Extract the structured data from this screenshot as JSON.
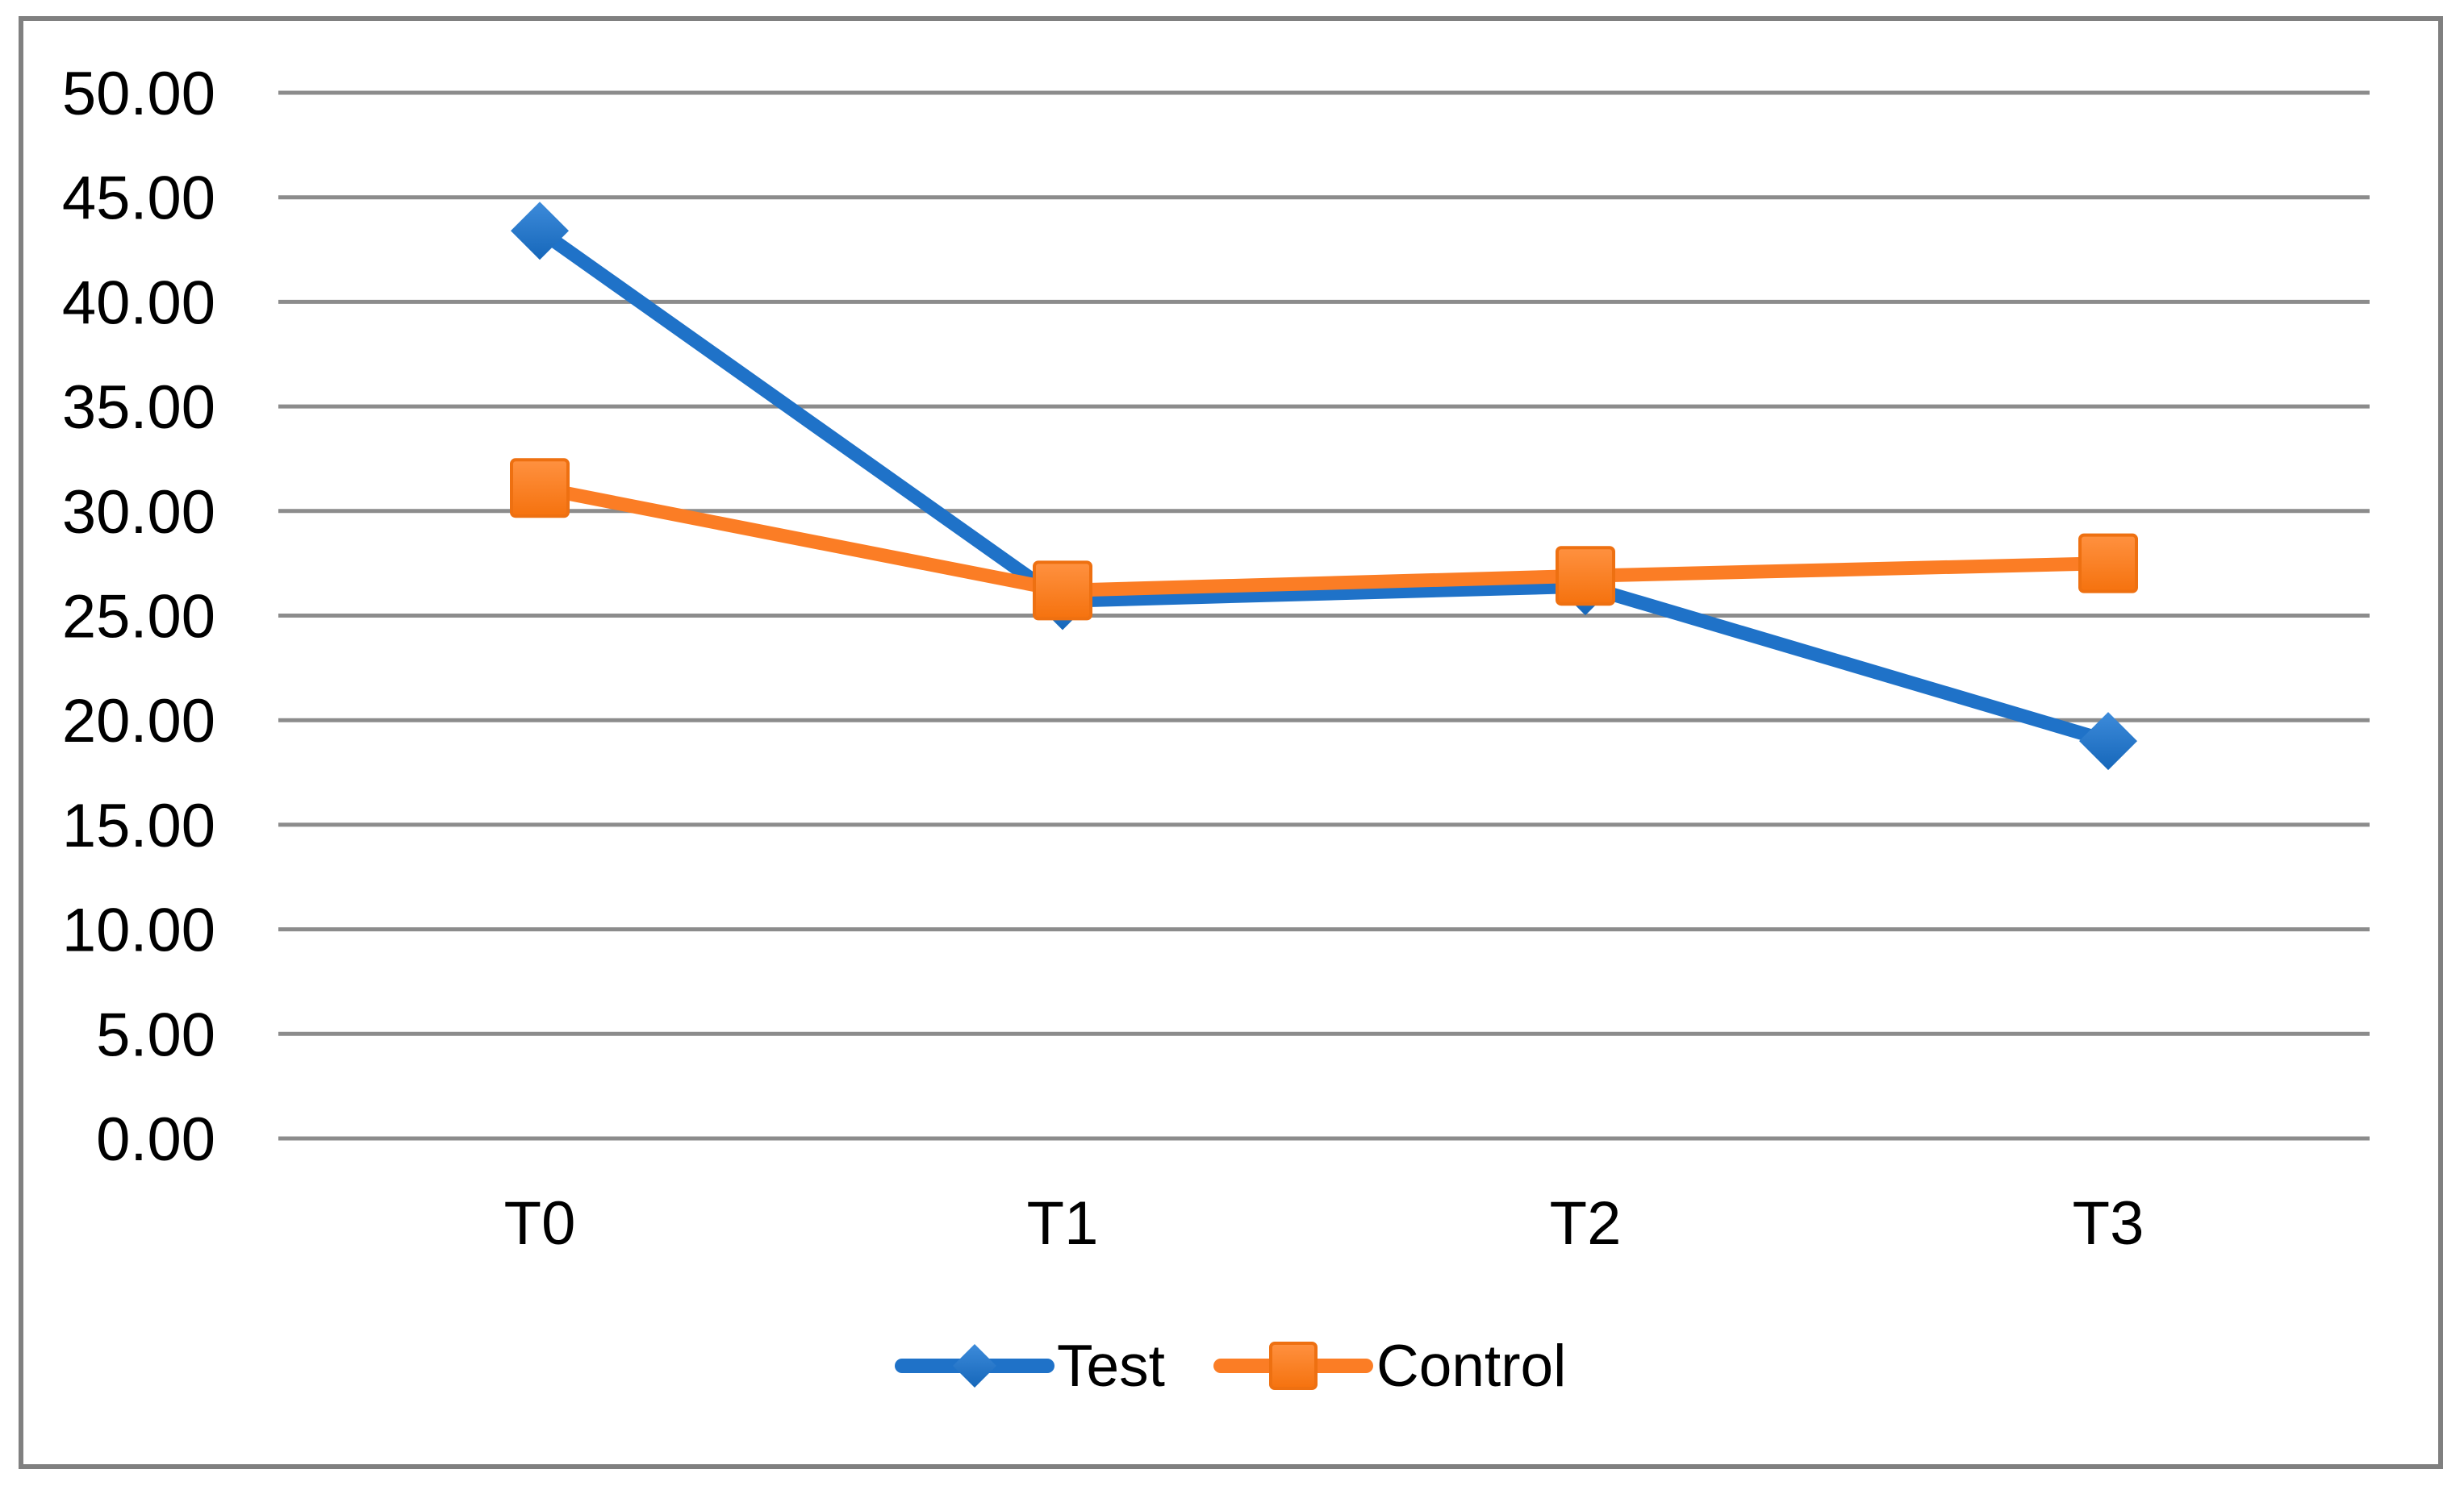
{
  "figure": {
    "background": "#FFFFFF",
    "border_color": "#808080"
  },
  "chart_data": {
    "type": "line",
    "title": "",
    "xlabel": "",
    "ylabel": "",
    "categories": [
      "T0",
      "T1",
      "T2",
      "T3"
    ],
    "series": [
      {
        "name": "Test",
        "values": [
          43.4,
          25.7,
          26.4,
          19.0
        ],
        "color": "#1F72C8",
        "marker": "diamond",
        "marker_gradient": [
          "#3D8BDA",
          "#1667BA"
        ],
        "marker_stroke": "none"
      },
      {
        "name": "Control",
        "values": [
          31.1,
          26.2,
          26.9,
          27.5
        ],
        "color": "#FB7D25",
        "marker": "square",
        "marker_gradient": [
          "#FF9140",
          "#F5720E"
        ],
        "marker_stroke": "#EE7011"
      }
    ],
    "ylim": [
      0,
      50
    ],
    "ytick_step": 5,
    "yticks": [
      "0.00",
      "5.00",
      "10.00",
      "15.00",
      "20.00",
      "25.00",
      "30.00",
      "35.00",
      "40.00",
      "45.00",
      "50.00"
    ],
    "grid": true,
    "gridline_color": "#8C8C8C",
    "axis_text_color": "#000000",
    "legend_position": "bottom",
    "legend_labels": [
      "Test",
      "Control"
    ]
  }
}
